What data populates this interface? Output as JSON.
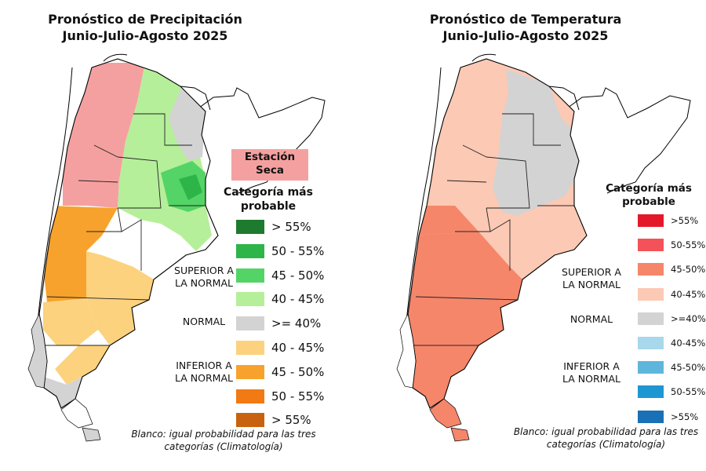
{
  "maps": [
    {
      "title_line1": "Pronóstico de Precipitación",
      "title_line2": "Junio-Julio-Agosto 2025",
      "dry_season_line1": "Estación",
      "dry_season_line2": "Seca",
      "dry_season_color": "#f5a0a0",
      "legend_title_line1": "Categoría más",
      "legend_title_line2": "probable",
      "legend": [
        {
          "label": "> 55%",
          "color": "#1e7a2e"
        },
        {
          "label": "50 - 55%",
          "color": "#2db54a"
        },
        {
          "label": "45 - 50%",
          "color": "#54d466"
        },
        {
          "label": "40 - 45%",
          "color": "#b5ef9a"
        },
        {
          "label": ">= 40%",
          "color": "#d3d3d3"
        },
        {
          "label": "40 - 45%",
          "color": "#fcd27e"
        },
        {
          "label": "45 - 50%",
          "color": "#f7a22d"
        },
        {
          "label": "50 - 55%",
          "color": "#f17a14"
        },
        {
          "label": "> 55%",
          "color": "#c9620e"
        }
      ],
      "group_above_line1": "SUPERIOR A",
      "group_above_line2": "LA NORMAL",
      "group_normal": "NORMAL",
      "group_below_line1": "INFERIOR A",
      "group_below_line2": "LA NORMAL",
      "note_line1": "Blanco: igual probabilidad para las tres",
      "note_line2": "categorías (Climatología)"
    },
    {
      "title_line1": "Pronóstico de Temperatura",
      "title_line2": "Junio-Julio-Agosto 2025",
      "legend_title_line1": "Categoría más",
      "legend_title_line2": "probable",
      "legend": [
        {
          "label": ">55%",
          "color": "#e3182b"
        },
        {
          "label": "50-55%",
          "color": "#f25258"
        },
        {
          "label": "45-50%",
          "color": "#f5866a"
        },
        {
          "label": "40-45%",
          "color": "#fcc9b4"
        },
        {
          "label": ">=40%",
          "color": "#d3d3d3"
        },
        {
          "label": "40-45%",
          "color": "#a8d8ec"
        },
        {
          "label": "45-50%",
          "color": "#5fb6dc"
        },
        {
          "label": "50-55%",
          "color": "#1e96d1"
        },
        {
          "label": ">55%",
          "color": "#1970b6"
        }
      ],
      "group_above_line1": "SUPERIOR A",
      "group_above_line2": "LA NORMAL",
      "group_normal": "NORMAL",
      "group_below_line1": "INFERIOR A",
      "group_below_line2": "LA NORMAL",
      "note_line1": "Blanco: igual probabilidad para las tres",
      "note_line2": "categorías (Climatología)"
    }
  ]
}
